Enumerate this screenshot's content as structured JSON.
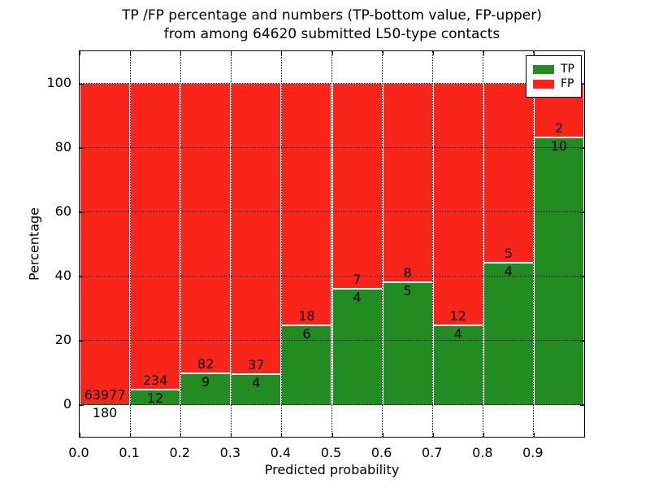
{
  "title": {
    "line1": "TP /FP percentage and numbers (TP-bottom value, FP-upper)",
    "line2": "from among 64620 submitted L50-type contacts"
  },
  "chart_data": {
    "type": "bar",
    "stacked": true,
    "normalized": "each 0.1-wide bin scaled to 100 percent",
    "title": "TP /FP percentage and numbers (TP-bottom value, FP-upper) from among 64620 submitted L50-type contacts",
    "xlabel": "Predicted probability",
    "ylabel": "Percentage",
    "xlim": [
      0.0,
      1.0
    ],
    "ylim": [
      -10,
      110
    ],
    "grid": true,
    "legend_position": "upper right",
    "bin_width": 0.1,
    "categories": [
      "0.0-0.1",
      "0.1-0.2",
      "0.2-0.3",
      "0.3-0.4",
      "0.4-0.5",
      "0.5-0.6",
      "0.6-0.7",
      "0.7-0.8",
      "0.8-0.9",
      "0.9-1.0"
    ],
    "series": [
      {
        "name": "TP",
        "color": "#228b22",
        "counts": [
          180,
          12,
          9,
          4,
          6,
          4,
          5,
          4,
          4,
          10
        ]
      },
      {
        "name": "FP",
        "color": "#fa251a",
        "counts": [
          63977,
          234,
          82,
          37,
          18,
          7,
          8,
          12,
          5,
          2
        ]
      }
    ],
    "tp_percent": [
      0.28,
      4.88,
      9.89,
      9.76,
      25.0,
      36.36,
      38.46,
      25.0,
      44.44,
      83.33
    ],
    "fp_percent": [
      99.72,
      95.12,
      90.11,
      90.24,
      75.0,
      63.64,
      61.54,
      75.0,
      55.56,
      16.67
    ],
    "x_tick_labels": [
      "0.0",
      "0.1",
      "0.2",
      "0.3",
      "0.4",
      "0.5",
      "0.6",
      "0.7",
      "0.8",
      "0.9"
    ],
    "x_tick_values": [
      0.0,
      0.1,
      0.2,
      0.3,
      0.4,
      0.5,
      0.6,
      0.7,
      0.8,
      0.9
    ],
    "y_tick_labels": [
      "0",
      "20",
      "40",
      "60",
      "80",
      "100"
    ],
    "y_tick_values": [
      0,
      20,
      40,
      60,
      80,
      100
    ]
  }
}
